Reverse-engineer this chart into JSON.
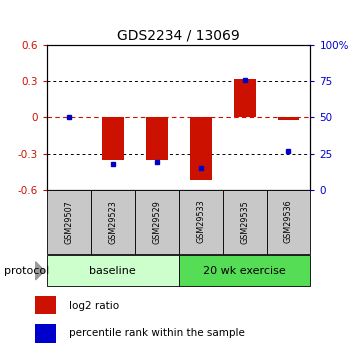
{
  "title": "GDS2234 / 13069",
  "samples": [
    "GSM29507",
    "GSM29523",
    "GSM29529",
    "GSM29533",
    "GSM29535",
    "GSM29536"
  ],
  "log2_ratio": [
    0.0,
    -0.35,
    -0.35,
    -0.52,
    0.32,
    -0.02
  ],
  "percentile_rank": [
    50,
    18,
    19,
    15,
    76,
    27
  ],
  "ylim_left": [
    -0.6,
    0.6
  ],
  "ylim_right": [
    0,
    100
  ],
  "yticks_left": [
    -0.6,
    -0.3,
    0.0,
    0.3,
    0.6
  ],
  "yticks_right": [
    0,
    25,
    50,
    75,
    100
  ],
  "ytick_labels_right": [
    "0",
    "25",
    "50",
    "75",
    "100%"
  ],
  "groups": [
    {
      "label": "baseline",
      "start": 0,
      "end": 3,
      "color": "#ccffcc"
    },
    {
      "label": "20 wk exercise",
      "start": 3,
      "end": 6,
      "color": "#55dd55"
    }
  ],
  "protocol_label": "protocol",
  "bar_color_red": "#cc1100",
  "dot_color_blue": "#0000cc",
  "bg_color": "#ffffff",
  "plot_bg_color": "#ffffff",
  "zero_line_color": "#cc1100",
  "sample_bg_color": "#c8c8c8",
  "legend_red_label": "log2 ratio",
  "legend_blue_label": "percentile rank within the sample"
}
